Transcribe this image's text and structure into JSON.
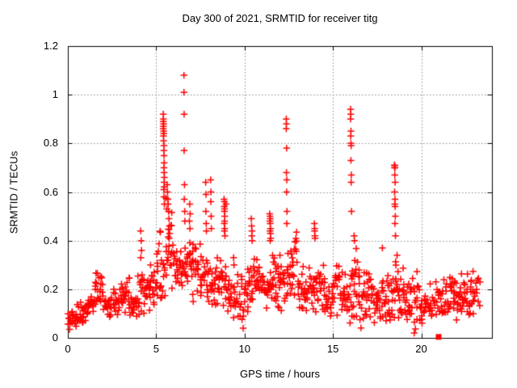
{
  "chart_data": {
    "type": "scatter",
    "title": "Day 300 of 2021, SRMTID for receiver titg",
    "xlabel": "GPS time / hours",
    "ylabel": "SRMTID / TECUs",
    "xlim": [
      0,
      24
    ],
    "ylim": [
      0,
      1.2
    ],
    "x_tick_values": [
      0,
      5,
      10,
      15,
      20
    ],
    "x_tick_labels": [
      "0",
      "5",
      "10",
      "15",
      "20"
    ],
    "y_tick_values": [
      0,
      0.2,
      0.4,
      0.6,
      0.8,
      1,
      1.2
    ],
    "y_tick_labels": [
      "0",
      "0.2",
      "0.4",
      "0.6",
      "0.8",
      "1",
      "1.2"
    ],
    "grid": "dotted gray at labeled ticks",
    "legend": "none",
    "marker": "plus",
    "marker_color": "#ff0000",
    "axis_color": "#000000",
    "grid_color": "#909090",
    "background_color": "#ffffff",
    "band_envelope_comment": "dense 30s-cadence band, entries [x_start,x_end,y_min,y_max,n_points]",
    "band": [
      [
        0.0,
        0.5,
        0.04,
        0.13,
        20
      ],
      [
        0.5,
        1.0,
        0.05,
        0.16,
        20
      ],
      [
        1.0,
        1.5,
        0.08,
        0.2,
        20
      ],
      [
        1.5,
        2.0,
        0.09,
        0.28,
        22
      ],
      [
        2.0,
        2.5,
        0.08,
        0.18,
        20
      ],
      [
        2.5,
        3.0,
        0.08,
        0.22,
        20
      ],
      [
        3.0,
        3.5,
        0.09,
        0.26,
        20
      ],
      [
        3.5,
        4.0,
        0.08,
        0.18,
        20
      ],
      [
        4.0,
        4.5,
        0.08,
        0.3,
        22
      ],
      [
        4.5,
        5.0,
        0.1,
        0.36,
        22
      ],
      [
        5.0,
        5.5,
        0.12,
        0.45,
        24
      ],
      [
        5.5,
        6.0,
        0.16,
        0.63,
        26
      ],
      [
        6.0,
        6.5,
        0.18,
        0.4,
        22
      ],
      [
        6.5,
        7.0,
        0.17,
        0.45,
        22
      ],
      [
        7.0,
        7.5,
        0.13,
        0.42,
        22
      ],
      [
        7.5,
        8.0,
        0.12,
        0.36,
        20
      ],
      [
        8.0,
        8.5,
        0.1,
        0.38,
        22
      ],
      [
        8.5,
        9.0,
        0.1,
        0.35,
        22
      ],
      [
        9.0,
        9.5,
        0.08,
        0.28,
        20
      ],
      [
        9.5,
        10.0,
        0.05,
        0.3,
        20
      ],
      [
        10.0,
        10.5,
        0.08,
        0.3,
        20
      ],
      [
        10.5,
        11.0,
        0.1,
        0.35,
        22
      ],
      [
        11.0,
        11.5,
        0.1,
        0.3,
        20
      ],
      [
        11.5,
        12.0,
        0.1,
        0.38,
        24
      ],
      [
        12.0,
        12.5,
        0.1,
        0.35,
        22
      ],
      [
        12.5,
        13.0,
        0.12,
        0.45,
        24
      ],
      [
        13.0,
        13.5,
        0.08,
        0.32,
        22
      ],
      [
        13.5,
        14.0,
        0.08,
        0.3,
        20
      ],
      [
        14.0,
        14.5,
        0.07,
        0.35,
        22
      ],
      [
        14.5,
        15.0,
        0.06,
        0.25,
        20
      ],
      [
        15.0,
        15.5,
        0.06,
        0.32,
        20
      ],
      [
        15.5,
        16.0,
        0.05,
        0.28,
        20
      ],
      [
        16.0,
        16.5,
        0.05,
        0.38,
        24
      ],
      [
        16.5,
        17.0,
        0.04,
        0.3,
        22
      ],
      [
        17.0,
        17.5,
        0.05,
        0.3,
        20
      ],
      [
        17.5,
        18.0,
        0.04,
        0.26,
        20
      ],
      [
        18.0,
        18.5,
        0.04,
        0.3,
        22
      ],
      [
        18.5,
        19.0,
        0.05,
        0.33,
        24
      ],
      [
        19.0,
        19.5,
        0.03,
        0.25,
        20
      ],
      [
        19.5,
        20.0,
        0.02,
        0.28,
        20
      ],
      [
        20.0,
        20.5,
        0.04,
        0.2,
        18
      ],
      [
        20.5,
        21.0,
        0.05,
        0.25,
        18
      ],
      [
        21.0,
        21.5,
        0.05,
        0.28,
        20
      ],
      [
        21.5,
        22.0,
        0.06,
        0.31,
        22
      ],
      [
        22.0,
        22.5,
        0.05,
        0.28,
        22
      ],
      [
        22.5,
        23.0,
        0.08,
        0.31,
        22
      ],
      [
        23.0,
        23.3,
        0.08,
        0.26,
        10
      ]
    ],
    "spike_points_comment": "individually visible high excursions [x,y]",
    "spike_points": [
      [
        4.12,
        0.44
      ],
      [
        4.15,
        0.4
      ],
      [
        4.17,
        0.36
      ],
      [
        4.13,
        0.33
      ],
      [
        5.4,
        0.92
      ],
      [
        5.41,
        0.9
      ],
      [
        5.4,
        0.89
      ],
      [
        5.42,
        0.88
      ],
      [
        5.41,
        0.87
      ],
      [
        5.4,
        0.86
      ],
      [
        5.42,
        0.85
      ],
      [
        5.43,
        0.84
      ],
      [
        5.41,
        0.83
      ],
      [
        5.42,
        0.81
      ],
      [
        5.44,
        0.79
      ],
      [
        5.43,
        0.77
      ],
      [
        5.44,
        0.75
      ],
      [
        5.45,
        0.72
      ],
      [
        5.44,
        0.7
      ],
      [
        5.45,
        0.68
      ],
      [
        5.46,
        0.66
      ],
      [
        5.45,
        0.64
      ],
      [
        5.43,
        0.61
      ],
      [
        5.44,
        0.58
      ],
      [
        5.46,
        0.55
      ],
      [
        5.62,
        0.63
      ],
      [
        5.64,
        0.6
      ],
      [
        5.66,
        0.57
      ],
      [
        5.68,
        0.55
      ],
      [
        5.7,
        0.52
      ],
      [
        5.72,
        0.49
      ],
      [
        5.74,
        0.46
      ],
      [
        5.76,
        0.43
      ],
      [
        6.57,
        1.08
      ],
      [
        6.57,
        1.01
      ],
      [
        6.58,
        0.92
      ],
      [
        6.58,
        0.77
      ],
      [
        6.6,
        0.63
      ],
      [
        6.59,
        0.57
      ],
      [
        6.61,
        0.52
      ],
      [
        6.62,
        0.48
      ],
      [
        6.9,
        0.55
      ],
      [
        6.92,
        0.51
      ],
      [
        6.88,
        0.48
      ],
      [
        6.91,
        0.45
      ],
      [
        7.8,
        0.64
      ],
      [
        7.82,
        0.59
      ],
      [
        7.81,
        0.52
      ],
      [
        7.83,
        0.47
      ],
      [
        7.84,
        0.44
      ],
      [
        8.08,
        0.65
      ],
      [
        8.1,
        0.6
      ],
      [
        8.09,
        0.56
      ],
      [
        8.11,
        0.5
      ],
      [
        8.12,
        0.45
      ],
      [
        8.84,
        0.57
      ],
      [
        8.86,
        0.56
      ],
      [
        8.85,
        0.54
      ],
      [
        8.87,
        0.53
      ],
      [
        8.86,
        0.52
      ],
      [
        8.88,
        0.5
      ],
      [
        8.87,
        0.48
      ],
      [
        8.85,
        0.47
      ],
      [
        8.88,
        0.45
      ],
      [
        8.86,
        0.44
      ],
      [
        8.89,
        0.42
      ],
      [
        8.95,
        0.55
      ],
      [
        9.38,
        0.33
      ],
      [
        9.4,
        0.3
      ],
      [
        10.38,
        0.49
      ],
      [
        10.4,
        0.46
      ],
      [
        10.42,
        0.44
      ],
      [
        10.41,
        0.42
      ],
      [
        10.43,
        0.4
      ],
      [
        11.42,
        0.51
      ],
      [
        11.44,
        0.5
      ],
      [
        11.46,
        0.49
      ],
      [
        11.43,
        0.48
      ],
      [
        11.45,
        0.47
      ],
      [
        11.47,
        0.45
      ],
      [
        11.44,
        0.44
      ],
      [
        11.46,
        0.43
      ],
      [
        11.48,
        0.41
      ],
      [
        11.45,
        0.4
      ],
      [
        12.36,
        0.9
      ],
      [
        12.37,
        0.88
      ],
      [
        12.36,
        0.86
      ],
      [
        12.38,
        0.78
      ],
      [
        12.37,
        0.68
      ],
      [
        12.39,
        0.65
      ],
      [
        12.38,
        0.6
      ],
      [
        12.4,
        0.52
      ],
      [
        12.39,
        0.47
      ],
      [
        13.95,
        0.47
      ],
      [
        13.97,
        0.45
      ],
      [
        13.96,
        0.44
      ],
      [
        13.98,
        0.42
      ],
      [
        13.99,
        0.41
      ],
      [
        16.0,
        0.94
      ],
      [
        16.01,
        0.92
      ],
      [
        16.0,
        0.9
      ],
      [
        16.02,
        0.85
      ],
      [
        16.01,
        0.83
      ],
      [
        16.02,
        0.8
      ],
      [
        16.03,
        0.79
      ],
      [
        16.02,
        0.73
      ],
      [
        16.04,
        0.67
      ],
      [
        16.03,
        0.64
      ],
      [
        16.05,
        0.52
      ],
      [
        16.2,
        0.42
      ],
      [
        16.22,
        0.4
      ],
      [
        17.8,
        0.37
      ],
      [
        18.48,
        0.71
      ],
      [
        18.5,
        0.71
      ],
      [
        18.49,
        0.7
      ],
      [
        18.51,
        0.7
      ],
      [
        18.5,
        0.67
      ],
      [
        18.52,
        0.64
      ],
      [
        18.49,
        0.6
      ],
      [
        18.51,
        0.57
      ],
      [
        18.5,
        0.55
      ],
      [
        18.52,
        0.54
      ],
      [
        18.53,
        0.5
      ],
      [
        18.51,
        0.47
      ],
      [
        18.54,
        0.42
      ],
      [
        18.63,
        0.34
      ],
      [
        9.92,
        0.04
      ],
      [
        19.6,
        0.02
      ],
      [
        0.1,
        0.035
      ]
    ],
    "square_points_comment": "filled square marker sitting on the x-axis",
    "square_points": [
      [
        20.98,
        0.004
      ]
    ]
  }
}
